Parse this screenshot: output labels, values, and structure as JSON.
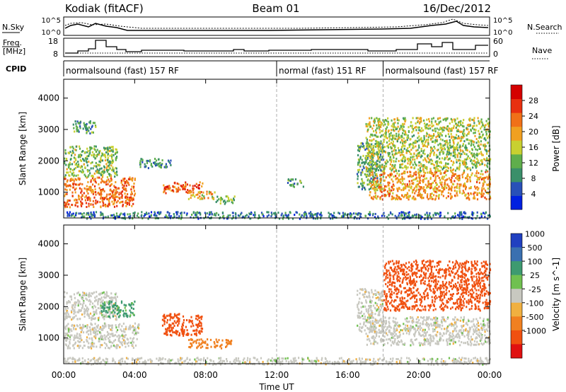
{
  "header": {
    "station": "Kodiak (fitACF)",
    "beam": "Beam 01",
    "date": "16/Dec/2012"
  },
  "strip_panels": {
    "nsky_label": "N.Sky",
    "nsearch_label": "N.Search",
    "nsky_ticks": [
      "10^5",
      "10^0"
    ],
    "nsearch_ticks": [
      "10^5",
      "10^0"
    ],
    "freq_label_line1": "Freq.",
    "freq_label_line2": "[MHz]",
    "freq_ticks": [
      "18",
      "8"
    ],
    "nave_label": "Nave",
    "nave_ticks": [
      "60",
      "0"
    ],
    "cpid_label": "CPID",
    "cpid_segments": [
      {
        "label": "normalsound (fast) 157 RF",
        "start_h": 0,
        "end_h": 12
      },
      {
        "label": "normal (fast) 151 RF",
        "start_h": 12,
        "end_h": 18
      },
      {
        "label": "normalsound (fast) 157 RF",
        "start_h": 18,
        "end_h": 24
      }
    ]
  },
  "axes": {
    "x_label": "Time UT",
    "x_ticks": [
      "00:00",
      "04:00",
      "08:00",
      "12:00",
      "16:00",
      "20:00",
      "00:00"
    ],
    "y_label": "Slant Range [km]",
    "y_ticks": [
      "1000",
      "2000",
      "3000",
      "4000"
    ]
  },
  "colors": {
    "power_scale": [
      "#0020e0",
      "#2850b8",
      "#3a8f6a",
      "#5fae4c",
      "#c8d030",
      "#f0a020",
      "#f07018",
      "#e83010",
      "#d40000"
    ],
    "velocity_scale": [
      "#2040c0",
      "#3a70b0",
      "#3d9a70",
      "#70c050",
      "#c8c8c0",
      "#f0b040",
      "#f08020",
      "#f05010",
      "#e01010"
    ]
  },
  "chart_data": [
    {
      "type": "heatmap",
      "title": "Beam 01",
      "xlabel": "Time UT",
      "ylabel": "Slant Range [km]",
      "xlim": [
        0,
        24
      ],
      "ylim": [
        180,
        4600
      ],
      "colorbar_label": "Power [dB]",
      "colorbar_ticks": [
        "4",
        "8",
        "12",
        "16",
        "20",
        "24",
        "28"
      ],
      "colorbar_range": [
        0,
        32
      ],
      "regions": [
        {
          "t": [
            0.0,
            4.0
          ],
          "r": [
            550,
            1500
          ],
          "v": 24
        },
        {
          "t": [
            0.0,
            3.0
          ],
          "r": [
            1500,
            2500
          ],
          "v": 13
        },
        {
          "t": [
            0.5,
            1.8
          ],
          "r": [
            2900,
            3300
          ],
          "v": 9
        },
        {
          "t": [
            4.2,
            6.0
          ],
          "r": [
            1800,
            2100
          ],
          "v": 8
        },
        {
          "t": [
            5.5,
            7.8
          ],
          "r": [
            1000,
            1350
          ],
          "v": 26
        },
        {
          "t": [
            7.0,
            8.5
          ],
          "r": [
            800,
            1050
          ],
          "v": 18
        },
        {
          "t": [
            8.5,
            9.6
          ],
          "r": [
            650,
            900
          ],
          "v": 12
        },
        {
          "t": [
            12.5,
            13.5
          ],
          "r": [
            1200,
            1450
          ],
          "v": 9
        },
        {
          "t": [
            16.5,
            18.0
          ],
          "r": [
            1100,
            2600
          ],
          "v": 10
        },
        {
          "t": [
            17.2,
            24.0
          ],
          "r": [
            800,
            1700
          ],
          "v": 21
        },
        {
          "t": [
            17.0,
            24.0
          ],
          "r": [
            1700,
            3400
          ],
          "v": 15
        },
        {
          "t": [
            0.0,
            24.0
          ],
          "r": [
            180,
            400
          ],
          "v": 6
        }
      ]
    },
    {
      "type": "heatmap",
      "xlabel": "Time UT",
      "ylabel": "Slant Range [km]",
      "xlim": [
        0,
        24
      ],
      "ylim": [
        180,
        4600
      ],
      "colorbar_label": "Velocity [m s^-1]",
      "colorbar_ticks": [
        "1000",
        "500",
        "100",
        "25",
        "-25",
        "-100",
        "-500",
        "-1000"
      ],
      "regions": [
        {
          "t": [
            0.0,
            4.2
          ],
          "r": [
            700,
            1500
          ],
          "v": 0
        },
        {
          "t": [
            0.0,
            3.0
          ],
          "r": [
            1600,
            2500
          ],
          "v": 0
        },
        {
          "t": [
            2.0,
            4.0
          ],
          "r": [
            1700,
            2200
          ],
          "v": 150
        },
        {
          "t": [
            5.5,
            7.8
          ],
          "r": [
            1100,
            1800
          ],
          "v": -400
        },
        {
          "t": [
            7.0,
            9.5
          ],
          "r": [
            700,
            1000
          ],
          "v": -200
        },
        {
          "t": [
            16.5,
            18.0
          ],
          "r": [
            1200,
            2600
          ],
          "v": 0
        },
        {
          "t": [
            17.0,
            24.0
          ],
          "r": [
            800,
            1700
          ],
          "v": 0
        },
        {
          "t": [
            18.0,
            24.0
          ],
          "r": [
            1900,
            3500
          ],
          "v": -500
        },
        {
          "t": [
            0.0,
            24.0
          ],
          "r": [
            180,
            400
          ],
          "v": 0
        }
      ]
    }
  ]
}
